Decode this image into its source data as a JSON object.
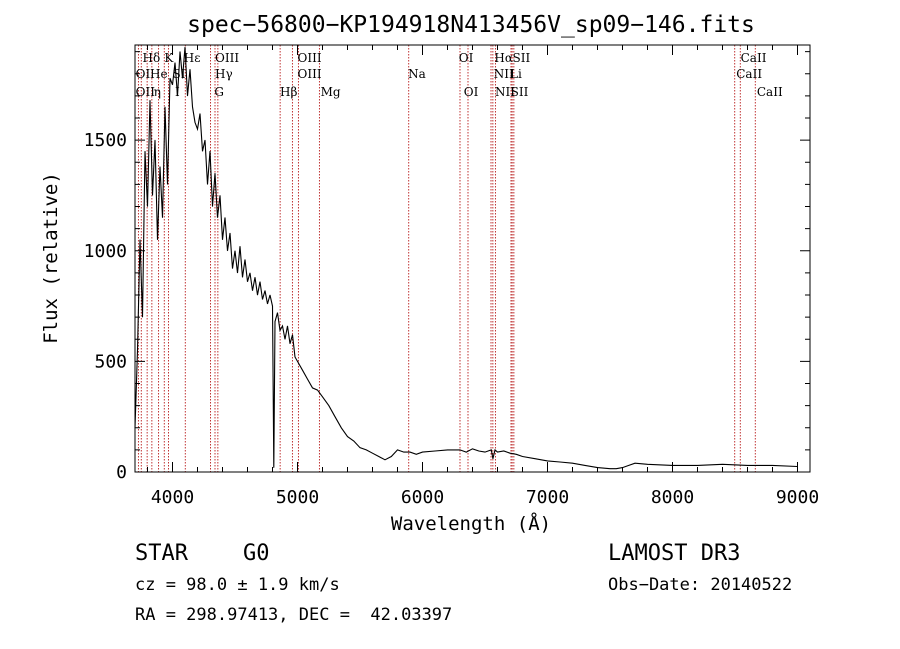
{
  "chart_data": {
    "type": "line",
    "title": "spec−56800−KP194918N413456V_sp09−146.fits",
    "xlabel": "Wavelength (Å)",
    "ylabel": "Flux (relative)",
    "xlim": [
      3700,
      9100
    ],
    "ylim": [
      0,
      1930
    ],
    "x_ticks": [
      4000,
      5000,
      6000,
      7000,
      8000,
      9000
    ],
    "y_ticks": [
      0,
      500,
      1000,
      1500
    ],
    "grid": false,
    "legend": "none",
    "series": [
      {
        "name": "flux",
        "x": [
          3700,
          3720,
          3740,
          3760,
          3780,
          3800,
          3820,
          3840,
          3860,
          3880,
          3900,
          3920,
          3940,
          3960,
          3980,
          4000,
          4020,
          4040,
          4060,
          4080,
          4100,
          4120,
          4140,
          4160,
          4180,
          4200,
          4220,
          4240,
          4260,
          4280,
          4300,
          4320,
          4340,
          4360,
          4380,
          4400,
          4420,
          4440,
          4460,
          4480,
          4500,
          4520,
          4540,
          4560,
          4580,
          4600,
          4620,
          4640,
          4660,
          4680,
          4700,
          4720,
          4740,
          4760,
          4780,
          4800,
          4810,
          4820,
          4840,
          4860,
          4880,
          4900,
          4920,
          4940,
          4960,
          4980,
          5000,
          5040,
          5080,
          5120,
          5160,
          5200,
          5250,
          5300,
          5350,
          5400,
          5450,
          5500,
          5550,
          5600,
          5650,
          5700,
          5750,
          5800,
          5850,
          5900,
          5950,
          6000,
          6100,
          6200,
          6300,
          6350,
          6400,
          6450,
          6500,
          6550,
          6563,
          6580,
          6600,
          6650,
          6700,
          6750,
          6800,
          6900,
          7000,
          7100,
          7200,
          7300,
          7400,
          7500,
          7550,
          7600,
          7650,
          7700,
          7800,
          8000,
          8200,
          8400,
          8600,
          8800,
          9000
        ],
        "values": [
          200,
          550,
          1050,
          700,
          1450,
          1200,
          1680,
          1250,
          1500,
          1050,
          1380,
          1150,
          1650,
          1300,
          1780,
          1750,
          1850,
          1700,
          1900,
          1780,
          1920,
          1700,
          1820,
          1650,
          1580,
          1550,
          1620,
          1450,
          1500,
          1300,
          1450,
          1200,
          1350,
          1150,
          1250,
          1050,
          1150,
          1000,
          1080,
          920,
          1000,
          900,
          1020,
          880,
          960,
          860,
          900,
          820,
          880,
          800,
          860,
          780,
          820,
          760,
          800,
          750,
          20,
          680,
          720,
          640,
          660,
          600,
          660,
          580,
          620,
          520,
          500,
          460,
          420,
          380,
          370,
          340,
          300,
          250,
          200,
          160,
          140,
          110,
          100,
          85,
          70,
          55,
          70,
          100,
          90,
          90,
          80,
          90,
          95,
          100,
          100,
          90,
          105,
          95,
          90,
          100,
          60,
          100,
          90,
          95,
          85,
          80,
          70,
          60,
          50,
          45,
          40,
          30,
          20,
          15,
          15,
          20,
          30,
          40,
          35,
          30,
          30,
          35,
          30,
          30,
          25
        ]
      }
    ],
    "annotations": {
      "row1": [
        "Hδ",
        "K",
        "Hε",
        "OIII",
        "OIII",
        "OI",
        "Hα",
        "SII",
        "CaII"
      ],
      "row2": [
        "OI",
        "He",
        "SI",
        "Hγ",
        "OIII",
        "Na",
        "NII",
        "Li",
        "CaII"
      ],
      "row3": [
        "OII",
        "η",
        "I",
        "G",
        "Hβ",
        "Mg",
        "OI",
        "NII",
        "SII",
        "CaII"
      ],
      "line_wavelengths": [
        3727,
        3750,
        3797,
        3835,
        3889,
        3934,
        3968,
        4102,
        4304,
        4340,
        4363,
        4861,
        4959,
        5007,
        5175,
        5890,
        6300,
        6364,
        6548,
        6563,
        6583,
        6708,
        6717,
        6731,
        8498,
        8542,
        8662
      ]
    }
  },
  "info": {
    "object_class": "STAR",
    "subclass": "G0",
    "survey": "LAMOST DR3",
    "redshift": "cz = 98.0 ± 1.9 km/s",
    "obs_date": "Obs−Date: 20140522",
    "coords": "RA = 298.97413, DEC =  42.03397"
  }
}
